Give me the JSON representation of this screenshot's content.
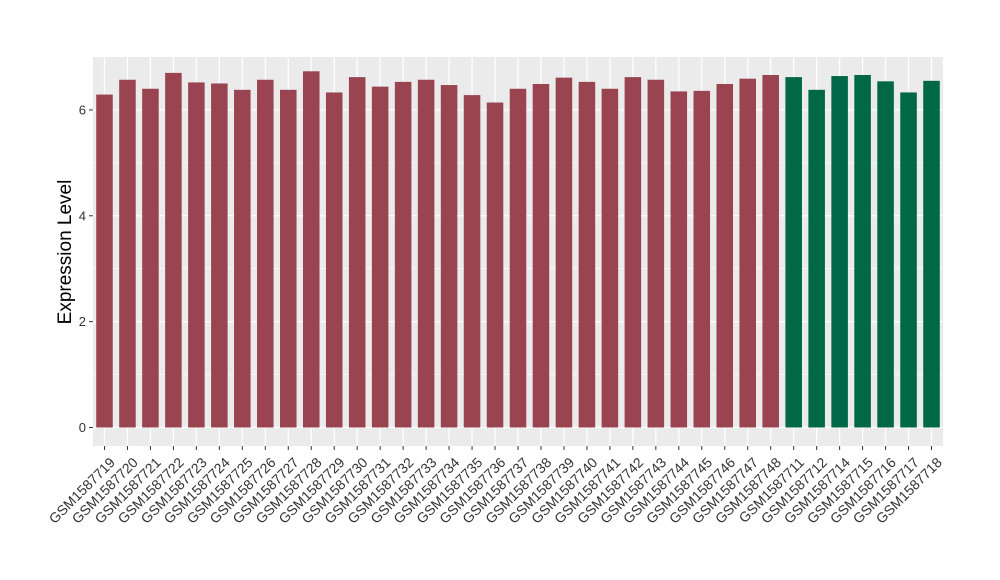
{
  "chart_data": {
    "type": "bar",
    "ylabel": "Expression Level",
    "xlabel": "",
    "ylim": [
      -0.35,
      7.0
    ],
    "yticks": [
      0,
      2,
      4,
      6
    ],
    "grid": true,
    "background": "#EBEBEB",
    "categories": [
      "GSM1587719",
      "GSM1587720",
      "GSM1587721",
      "GSM1587722",
      "GSM1587723",
      "GSM1587724",
      "GSM1587725",
      "GSM1587726",
      "GSM1587727",
      "GSM1587728",
      "GSM1587729",
      "GSM1587730",
      "GSM1587731",
      "GSM1587732",
      "GSM1587733",
      "GSM1587734",
      "GSM1587735",
      "GSM1587736",
      "GSM1587737",
      "GSM1587738",
      "GSM1587739",
      "GSM1587740",
      "GSM1587741",
      "GSM1587742",
      "GSM1587743",
      "GSM1587744",
      "GSM1587745",
      "GSM1587746",
      "GSM1587747",
      "GSM1587748",
      "GSM1587711",
      "GSM1587712",
      "GSM1587714",
      "GSM1587715",
      "GSM1587716",
      "GSM1587717",
      "GSM1587718"
    ],
    "values": [
      6.29,
      6.57,
      6.4,
      6.7,
      6.52,
      6.5,
      6.38,
      6.57,
      6.38,
      6.73,
      6.33,
      6.62,
      6.44,
      6.53,
      6.57,
      6.47,
      6.28,
      6.14,
      6.4,
      6.49,
      6.61,
      6.53,
      6.4,
      6.62,
      6.57,
      6.35,
      6.36,
      6.49,
      6.59,
      6.66,
      6.62,
      6.38,
      6.64,
      6.66,
      6.54,
      6.33,
      6.55
    ],
    "groups": [
      "a",
      "a",
      "a",
      "a",
      "a",
      "a",
      "a",
      "a",
      "a",
      "a",
      "a",
      "a",
      "a",
      "a",
      "a",
      "a",
      "a",
      "a",
      "a",
      "a",
      "a",
      "a",
      "a",
      "a",
      "a",
      "a",
      "a",
      "a",
      "a",
      "a",
      "b",
      "b",
      "b",
      "b",
      "b",
      "b",
      "b"
    ],
    "colors": {
      "a": "#994450",
      "b": "#006846"
    }
  }
}
